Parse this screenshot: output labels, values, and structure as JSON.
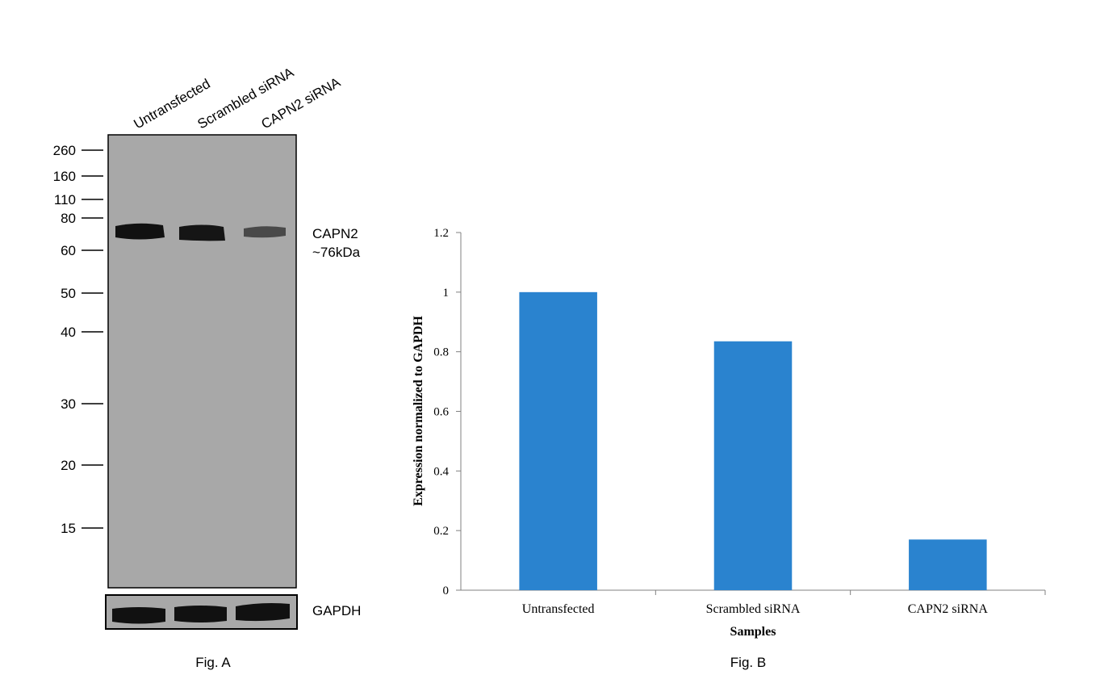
{
  "western_blot": {
    "lanes": [
      "Untransfected",
      "Scrambled siRNA",
      "CAPN2 siRNA"
    ],
    "markers": [
      "260",
      "160",
      "110",
      "80",
      "60",
      "50",
      "40",
      "30",
      "20",
      "15"
    ],
    "target_band": {
      "name": "CAPN2",
      "size": "~76kDa",
      "relative_intensity": [
        1.0,
        0.9,
        0.35
      ]
    },
    "loading_control": {
      "name": "GAPDH",
      "relative_intensity": [
        1.0,
        1.0,
        1.0
      ]
    },
    "caption": "Fig. A",
    "colors": {
      "membrane": "#a8a8a8",
      "band": "#111111"
    }
  },
  "chart_data": {
    "type": "bar",
    "categories": [
      "Untransfected",
      "Scrambled siRNA",
      "CAPN2 siRNA"
    ],
    "values": [
      1.0,
      0.835,
      0.17
    ],
    "xlabel": "Samples",
    "ylabel": "Expression normalized to GAPDH",
    "ylim": [
      0,
      1.2
    ],
    "yticks": [
      "0",
      "0.2",
      "0.4",
      "0.6",
      "0.8",
      "1",
      "1.2"
    ],
    "grid": false,
    "bar_color": "#2a83cf",
    "caption": "Fig. B"
  }
}
